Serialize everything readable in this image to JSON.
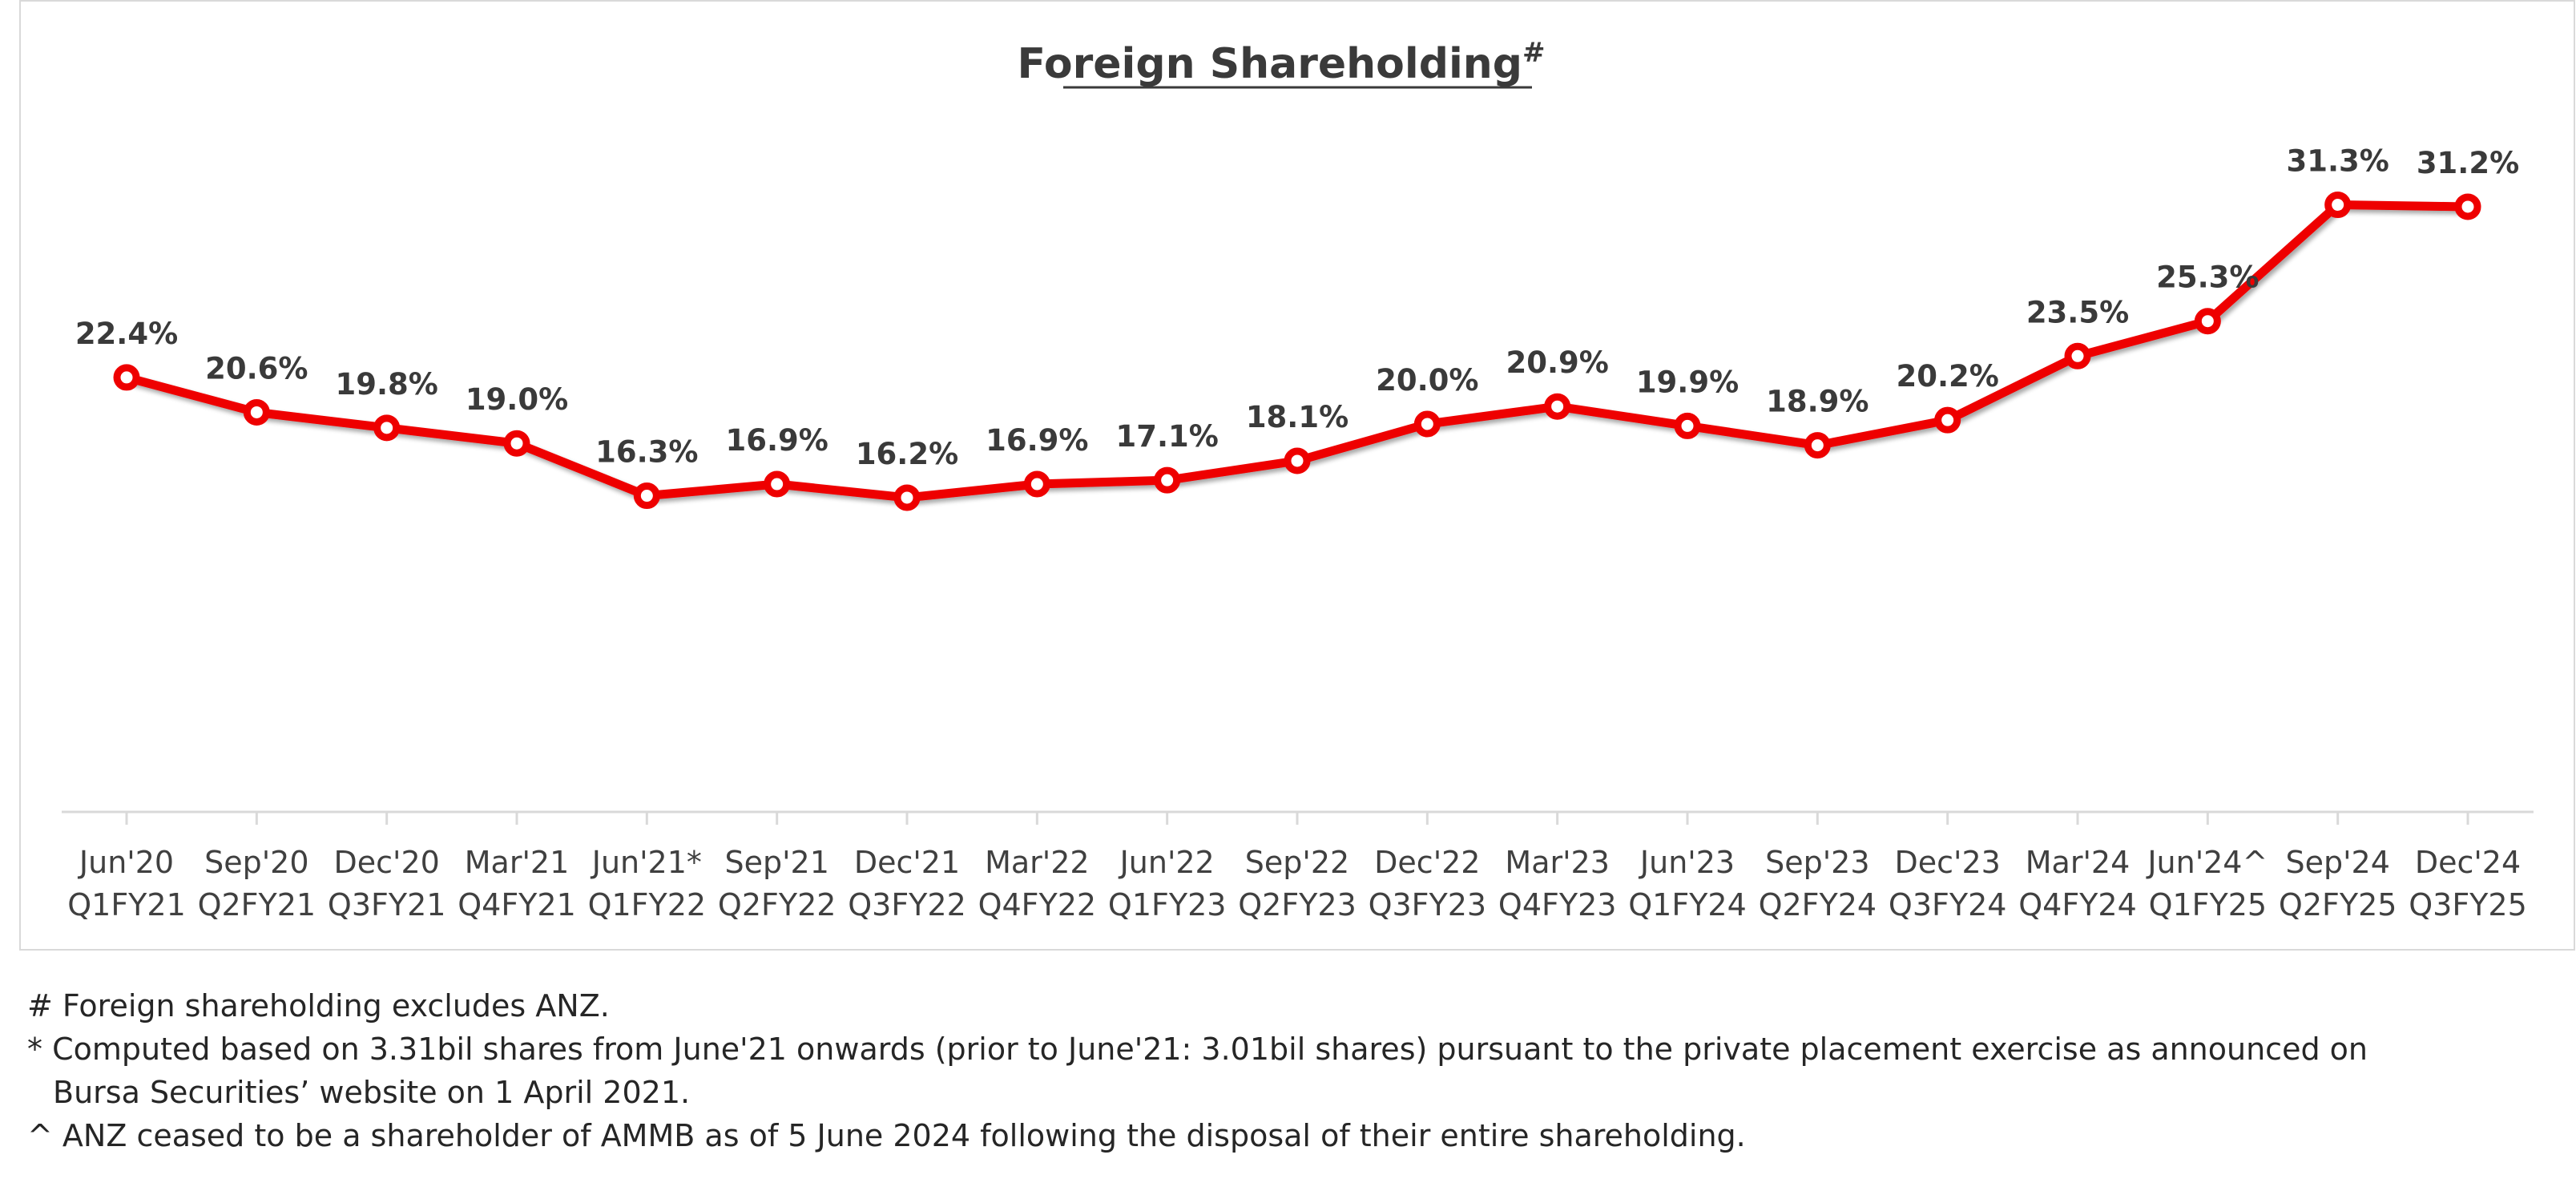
{
  "chart_data": {
    "type": "line",
    "title": "Foreign Shareholding",
    "title_superscript": "#",
    "categories": [
      [
        "Jun'20",
        "Q1FY21"
      ],
      [
        "Sep'20",
        "Q2FY21"
      ],
      [
        "Dec'20",
        "Q3FY21"
      ],
      [
        "Mar'21",
        "Q4FY21"
      ],
      [
        "Jun'21*",
        "Q1FY22"
      ],
      [
        "Sep'21",
        "Q2FY22"
      ],
      [
        "Dec'21",
        "Q3FY22"
      ],
      [
        "Mar'22",
        "Q4FY22"
      ],
      [
        "Jun'22",
        "Q1FY23"
      ],
      [
        "Sep'22",
        "Q2FY23"
      ],
      [
        "Dec'22",
        "Q3FY23"
      ],
      [
        "Mar'23",
        "Q4FY23"
      ],
      [
        "Jun'23",
        "Q1FY24"
      ],
      [
        "Sep'23",
        "Q2FY24"
      ],
      [
        "Dec'23",
        "Q3FY24"
      ],
      [
        "Mar'24",
        "Q4FY24"
      ],
      [
        "Jun'24^",
        "Q1FY25"
      ],
      [
        "Sep'24",
        "Q2FY25"
      ],
      [
        "Dec'24",
        "Q3FY25"
      ]
    ],
    "series": [
      {
        "values": [
          22.4,
          20.6,
          19.8,
          19.0,
          16.3,
          16.9,
          16.2,
          16.9,
          17.1,
          18.1,
          20.0,
          20.9,
          19.9,
          18.9,
          20.2,
          23.5,
          25.3,
          31.3,
          31.2
        ],
        "labels": [
          "22.4%",
          "20.6%",
          "19.8%",
          "19.0%",
          "16.3%",
          "16.9%",
          "16.2%",
          "16.9%",
          "17.1%",
          "18.1%",
          "20.0%",
          "20.9%",
          "19.9%",
          "18.9%",
          "20.2%",
          "23.5%",
          "25.3%",
          "31.3%",
          "31.2%"
        ]
      }
    ],
    "ylim": [
      0,
      40
    ],
    "grid": false,
    "legend": "none",
    "line_color": "#ee0000",
    "marker_fill": "#ffffff"
  },
  "notes": {
    "line1": "# Foreign shareholding excludes ANZ.",
    "line2": "* Computed based on 3.31bil shares from June'21 onwards (prior to June'21: 3.01bil shares) pursuant to the private placement exercise as announced on",
    "line3": "Bursa Securities’ website on 1 April 2021.",
    "line4": "^ ANZ ceased to be a shareholder of AMMB as of 5 June 2024 following the disposal of their entire shareholding."
  }
}
